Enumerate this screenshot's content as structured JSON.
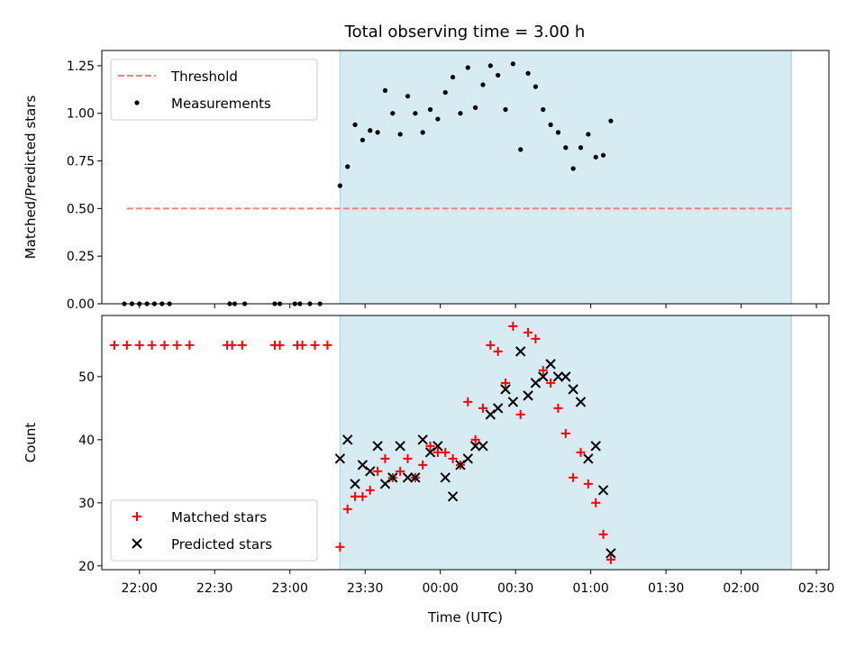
{
  "title": "Total observing time = 3.00 h",
  "chart_data": [
    {
      "type": "scatter",
      "panel": "top",
      "ylabel": "Matched/Predicted stars",
      "xlim": [
        "21:45",
        "02:35"
      ],
      "ylim": [
        0,
        1.33
      ],
      "yticks": [
        "0.00",
        "0.25",
        "0.50",
        "0.75",
        "1.00",
        "1.25"
      ],
      "shaded_span": [
        "23:20",
        "02:20"
      ],
      "legend": {
        "placement": "top-left",
        "entries": [
          "Threshold",
          "Measurements"
        ]
      },
      "threshold": {
        "name": "Threshold",
        "value": 0.5,
        "x_range": [
          "21:55",
          "02:20"
        ],
        "color": "#f47f7f",
        "style": "dashed"
      },
      "series": [
        {
          "name": "Measurements",
          "color": "#000000",
          "marker": "dot",
          "points": [
            [
              "21:54",
              0
            ],
            [
              "21:57",
              0
            ],
            [
              "22:00",
              0
            ],
            [
              "22:03",
              0
            ],
            [
              "22:06",
              0
            ],
            [
              "22:09",
              0
            ],
            [
              "22:12",
              0
            ],
            [
              "22:36",
              0
            ],
            [
              "22:38",
              0
            ],
            [
              "22:42",
              0
            ],
            [
              "22:54",
              0
            ],
            [
              "22:56",
              0
            ],
            [
              "23:02",
              0
            ],
            [
              "23:04",
              0
            ],
            [
              "23:08",
              0
            ],
            [
              "23:12",
              0
            ],
            [
              "23:20",
              0.62
            ],
            [
              "23:23",
              0.72
            ],
            [
              "23:26",
              0.94
            ],
            [
              "23:29",
              0.86
            ],
            [
              "23:32",
              0.91
            ],
            [
              "23:35",
              0.9
            ],
            [
              "23:38",
              1.12
            ],
            [
              "23:41",
              1.0
            ],
            [
              "23:44",
              0.89
            ],
            [
              "23:47",
              1.09
            ],
            [
              "23:50",
              1.0
            ],
            [
              "23:53",
              0.9
            ],
            [
              "23:56",
              1.02
            ],
            [
              "23:59",
              0.97
            ],
            [
              "00:02",
              1.11
            ],
            [
              "00:05",
              1.19
            ],
            [
              "00:08",
              1.0
            ],
            [
              "00:11",
              1.24
            ],
            [
              "00:14",
              1.03
            ],
            [
              "00:17",
              1.15
            ],
            [
              "00:20",
              1.25
            ],
            [
              "00:23",
              1.2
            ],
            [
              "00:26",
              1.02
            ],
            [
              "00:29",
              1.26
            ],
            [
              "00:32",
              0.81
            ],
            [
              "00:35",
              1.21
            ],
            [
              "00:38",
              1.14
            ],
            [
              "00:41",
              1.02
            ],
            [
              "00:44",
              0.94
            ],
            [
              "00:47",
              0.9
            ],
            [
              "00:50",
              0.82
            ],
            [
              "00:53",
              0.71
            ],
            [
              "00:56",
              0.82
            ],
            [
              "00:59",
              0.89
            ],
            [
              "01:02",
              0.77
            ],
            [
              "01:05",
              0.78
            ],
            [
              "01:08",
              0.96
            ]
          ]
        }
      ]
    },
    {
      "type": "scatter",
      "panel": "bottom",
      "xlabel": "Time (UTC)",
      "ylabel": "Count",
      "xlim": [
        "21:45",
        "02:35"
      ],
      "ylim": [
        19.4,
        59.7
      ],
      "yticks": [
        "20",
        "30",
        "40",
        "50"
      ],
      "xticks": [
        "22:00",
        "22:30",
        "23:00",
        "23:30",
        "00:00",
        "00:30",
        "01:00",
        "01:30",
        "02:00",
        "02:30"
      ],
      "shaded_span": [
        "23:20",
        "02:20"
      ],
      "legend": {
        "placement": "bottom-left",
        "entries": [
          "Matched stars",
          "Predicted stars"
        ]
      },
      "series": [
        {
          "name": "Matched stars",
          "color": "#ff0000",
          "marker": "plus",
          "points": [
            [
              "21:50",
              55
            ],
            [
              "21:55",
              55
            ],
            [
              "22:00",
              55
            ],
            [
              "22:05",
              55
            ],
            [
              "22:10",
              55
            ],
            [
              "22:15",
              55
            ],
            [
              "22:20",
              55
            ],
            [
              "22:35",
              55
            ],
            [
              "22:37",
              55
            ],
            [
              "22:41",
              55
            ],
            [
              "22:54",
              55
            ],
            [
              "22:56",
              55
            ],
            [
              "23:03",
              55
            ],
            [
              "23:05",
              55
            ],
            [
              "23:10",
              55
            ],
            [
              "23:15",
              55
            ],
            [
              "23:20",
              23
            ],
            [
              "23:23",
              29
            ],
            [
              "23:26",
              31
            ],
            [
              "23:29",
              31
            ],
            [
              "23:32",
              32
            ],
            [
              "23:35",
              35
            ],
            [
              "23:38",
              37
            ],
            [
              "23:41",
              34
            ],
            [
              "23:44",
              35
            ],
            [
              "23:47",
              37
            ],
            [
              "23:50",
              34
            ],
            [
              "23:53",
              36
            ],
            [
              "23:56",
              39
            ],
            [
              "23:59",
              38
            ],
            [
              "00:02",
              38
            ],
            [
              "00:05",
              37
            ],
            [
              "00:08",
              36
            ],
            [
              "00:11",
              46
            ],
            [
              "00:14",
              40
            ],
            [
              "00:17",
              45
            ],
            [
              "00:20",
              55
            ],
            [
              "00:23",
              54
            ],
            [
              "00:26",
              49
            ],
            [
              "00:29",
              58
            ],
            [
              "00:32",
              44
            ],
            [
              "00:35",
              57
            ],
            [
              "00:38",
              56
            ],
            [
              "00:41",
              51
            ],
            [
              "00:44",
              49
            ],
            [
              "00:47",
              45
            ],
            [
              "00:50",
              41
            ],
            [
              "00:53",
              34
            ],
            [
              "00:56",
              38
            ],
            [
              "00:59",
              33
            ],
            [
              "01:02",
              30
            ],
            [
              "01:05",
              25
            ],
            [
              "01:08",
              21
            ]
          ]
        },
        {
          "name": "Predicted stars",
          "color": "#000000",
          "marker": "x",
          "points": [
            [
              "23:20",
              37
            ],
            [
              "23:23",
              40
            ],
            [
              "23:26",
              33
            ],
            [
              "23:29",
              36
            ],
            [
              "23:32",
              35
            ],
            [
              "23:35",
              39
            ],
            [
              "23:38",
              33
            ],
            [
              "23:41",
              34
            ],
            [
              "23:44",
              39
            ],
            [
              "23:47",
              34
            ],
            [
              "23:50",
              34
            ],
            [
              "23:53",
              40
            ],
            [
              "23:56",
              38
            ],
            [
              "23:59",
              39
            ],
            [
              "00:02",
              34
            ],
            [
              "00:05",
              31
            ],
            [
              "00:08",
              36
            ],
            [
              "00:11",
              37
            ],
            [
              "00:14",
              39
            ],
            [
              "00:17",
              39
            ],
            [
              "00:20",
              44
            ],
            [
              "00:23",
              45
            ],
            [
              "00:26",
              48
            ],
            [
              "00:29",
              46
            ],
            [
              "00:32",
              54
            ],
            [
              "00:35",
              47
            ],
            [
              "00:38",
              49
            ],
            [
              "00:41",
              50
            ],
            [
              "00:44",
              52
            ],
            [
              "00:47",
              50
            ],
            [
              "00:50",
              50
            ],
            [
              "00:53",
              48
            ],
            [
              "00:56",
              46
            ],
            [
              "00:59",
              37
            ],
            [
              "01:02",
              39
            ],
            [
              "01:05",
              32
            ],
            [
              "01:08",
              22
            ]
          ]
        }
      ]
    }
  ]
}
